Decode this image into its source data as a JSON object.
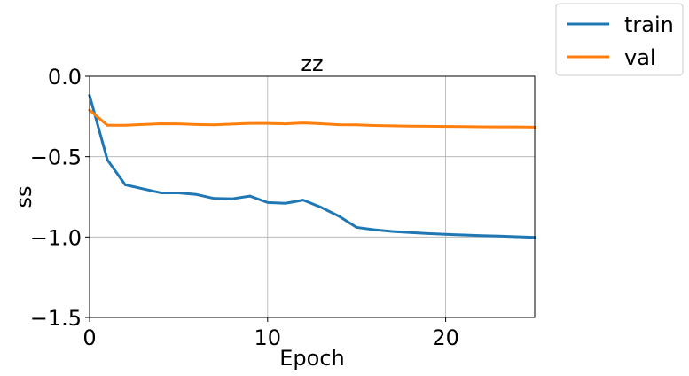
{
  "chart_data": {
    "type": "line",
    "title": "zz",
    "xlabel": "Epoch",
    "ylabel": "ss",
    "xlim": [
      0,
      25
    ],
    "ylim": [
      -1.5,
      0.0
    ],
    "xticks": [
      0,
      10,
      20
    ],
    "xtick_labels": [
      "0",
      "10",
      "20"
    ],
    "yticks": [
      0.0,
      -0.5,
      -1.0,
      -1.5
    ],
    "ytick_labels": [
      "0.0",
      "−0.5",
      "−1.0",
      "−1.5"
    ],
    "grid": true,
    "legend_position": "outside-top-right",
    "x": [
      0,
      1,
      2,
      3,
      4,
      5,
      6,
      7,
      8,
      9,
      10,
      11,
      12,
      13,
      14,
      15,
      16,
      17,
      18,
      19,
      20,
      21,
      22,
      23,
      24,
      25
    ],
    "series": [
      {
        "name": "train",
        "color": "#1f77b4",
        "values": [
          -0.12,
          -0.52,
          -0.675,
          -0.7,
          -0.725,
          -0.725,
          -0.735,
          -0.76,
          -0.762,
          -0.745,
          -0.785,
          -0.79,
          -0.77,
          -0.815,
          -0.87,
          -0.94,
          -0.955,
          -0.965,
          -0.972,
          -0.978,
          -0.983,
          -0.987,
          -0.991,
          -0.994,
          -0.998,
          -1.002
        ]
      },
      {
        "name": "val",
        "color": "#ff7f0e",
        "values": [
          -0.21,
          -0.305,
          -0.305,
          -0.3,
          -0.295,
          -0.296,
          -0.3,
          -0.302,
          -0.297,
          -0.293,
          -0.293,
          -0.296,
          -0.29,
          -0.295,
          -0.301,
          -0.302,
          -0.306,
          -0.308,
          -0.31,
          -0.311,
          -0.312,
          -0.313,
          -0.314,
          -0.315,
          -0.315,
          -0.316
        ]
      }
    ]
  }
}
